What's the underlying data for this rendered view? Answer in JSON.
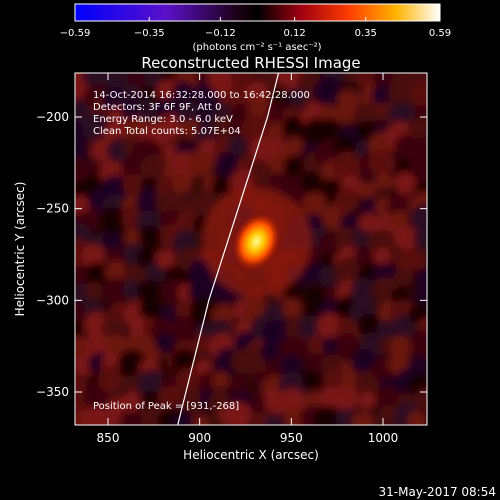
{
  "colorbar": {
    "ticks": [
      {
        "value": -0.59,
        "label": "−0.59"
      },
      {
        "value": -0.35,
        "label": "−0.35"
      },
      {
        "value": -0.12,
        "label": "−0.12"
      },
      {
        "value": 0.12,
        "label": "0.12"
      },
      {
        "value": 0.35,
        "label": "0.35"
      },
      {
        "value": 0.59,
        "label": "0.59"
      }
    ],
    "range": [
      -0.59,
      0.59
    ],
    "units_label": "(photons cm⁻² s⁻¹ asec⁻²)"
  },
  "chart_data": {
    "type": "heatmap",
    "title": "Reconstructed RHESSI Image",
    "xlabel": "Heliocentric X (arcsec)",
    "ylabel": "Heliocentric Y (arcsec)",
    "xlim": [
      832,
      1024
    ],
    "ylim": [
      -368,
      -176
    ],
    "x_ticks": [
      {
        "value": 850,
        "label": "850"
      },
      {
        "value": 900,
        "label": "900"
      },
      {
        "value": 950,
        "label": "950"
      },
      {
        "value": 1000,
        "label": "1000"
      }
    ],
    "y_ticks": [
      {
        "value": -200,
        "label": "−200"
      },
      {
        "value": -250,
        "label": "−250"
      },
      {
        "value": -300,
        "label": "−300"
      },
      {
        "value": -350,
        "label": "−350"
      }
    ],
    "annotations": [
      "14-Oct-2014 16:32:28.000 to 16:42:28.000",
      "Detectors: 3F 6F 9F, Att 0",
      "Energy Range: 3.0 - 6.0 keV",
      "Clean    Total counts: 5.07E+04"
    ],
    "peak_label": "Position of Peak = [931,-268]",
    "peak": {
      "x": 931,
      "y": -268,
      "value": 0.59
    },
    "limb_curve": [
      [
        888,
        -368
      ],
      [
        905,
        -300
      ],
      [
        921,
        -250
      ],
      [
        937,
        -200
      ],
      [
        943,
        -176
      ]
    ],
    "colormap": "red-temperature"
  },
  "footer": {
    "timestamp": "31-May-2017 08:54"
  }
}
